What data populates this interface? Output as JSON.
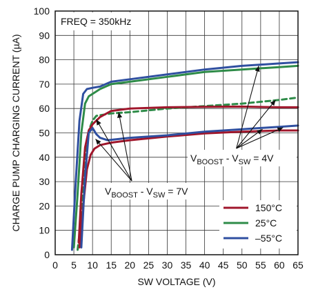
{
  "chart_data": {
    "type": "line",
    "xlabel": "SW VOLTAGE (V)",
    "ylabel": "CHARGE PUMP CHARGING CURRENT  (µA)",
    "xlim": [
      0,
      65
    ],
    "ylim": [
      0,
      100
    ],
    "x_ticks": [
      "0",
      "5",
      "10",
      "15",
      "20",
      "25",
      "30",
      "35",
      "40",
      "45",
      "50",
      "55",
      "60",
      "65"
    ],
    "y_ticks": [
      "0",
      "10",
      "20",
      "30",
      "40",
      "50",
      "60",
      "70",
      "80",
      "90",
      "100"
    ],
    "grid": true,
    "freq_label": "FREQ = 350kHz",
    "legend_position": "bottom-right",
    "colors": {
      "150°C": "#a0162b",
      "25°C": "#2e8b48",
      "-55°C": "#2f4fa0"
    },
    "series": [
      {
        "name": "150°C",
        "condition": "7V",
        "dashed": false,
        "color": "#a0162b",
        "x": [
          6.3,
          7.0,
          8.0,
          9.0,
          10.0,
          12.0,
          15.0,
          20.0,
          30.0,
          40.0,
          50.0,
          60.0,
          65.0
        ],
        "y": [
          5,
          25,
          44,
          51,
          53.5,
          56.5,
          59,
          60,
          60.5,
          60.7,
          60.8,
          60.5,
          60.5
        ]
      },
      {
        "name": "150°C",
        "condition": "4V",
        "dashed": false,
        "color": "#a0162b",
        "x": [
          6.5,
          7.5,
          8.5,
          9.5,
          10.5,
          12.0,
          15.0,
          20.0,
          30.0,
          40.0,
          50.0,
          60.0,
          65.0
        ],
        "y": [
          3,
          20,
          35,
          41,
          43.5,
          45,
          46,
          47,
          48.5,
          49.8,
          50.5,
          51,
          51
        ]
      },
      {
        "name": "25°C",
        "condition": "7V",
        "dashed": false,
        "color": "#2e8b48",
        "x": [
          5.0,
          6.0,
          7.0,
          8.0,
          9.0,
          10.0,
          12.0,
          15.0,
          20.0,
          30.0,
          40.0,
          50.0,
          60.0,
          65.0
        ],
        "y": [
          3,
          25,
          50,
          62,
          65,
          66,
          68,
          70,
          71,
          73,
          75,
          76,
          77,
          77.5
        ]
      },
      {
        "name": "25°C",
        "condition": "4V",
        "dashed": true,
        "color": "#2e8b48",
        "x": [
          6.0,
          7.0,
          8.0,
          9.0,
          10.0,
          11.0,
          15.0,
          20.0,
          30.0,
          40.0,
          50.0,
          60.0,
          65.0
        ],
        "y": [
          2,
          15,
          38,
          51,
          55,
          57,
          58,
          58.5,
          60,
          61,
          62,
          63.5,
          64.5
        ]
      },
      {
        "name": "–55°C",
        "condition": "7V",
        "dashed": false,
        "color": "#2f4fa0",
        "x": [
          4.5,
          5.5,
          6.5,
          7.5,
          8.5,
          10.0,
          12.0,
          15.0,
          20.0,
          30.0,
          40.0,
          50.0,
          60.0,
          65.0
        ],
        "y": [
          2,
          30,
          55,
          66,
          68,
          68.5,
          69,
          71,
          72,
          74,
          76,
          77.5,
          78.5,
          79
        ]
      },
      {
        "name": "–55°C",
        "condition": "4V",
        "dashed": false,
        "color": "#2f4fa0",
        "x": [
          7.0,
          8.0,
          9.0,
          10.0,
          11.0,
          12.0,
          14.0,
          20.0,
          30.0,
          40.0,
          50.0,
          60.0,
          65.0
        ],
        "y": [
          3,
          32,
          50,
          52,
          49.5,
          48,
          47,
          48,
          49,
          50.5,
          51.5,
          52.5,
          53
        ]
      }
    ],
    "annotations": [
      {
        "id": "vboost4",
        "main": "V",
        "sub1": "BOOST",
        "mid": " - V",
        "sub2": "SW",
        "tail": " = 4V"
      },
      {
        "id": "vboost7",
        "main": "V",
        "sub1": "BOOST",
        "mid": " - V",
        "sub2": "SW",
        "tail": " = 7V"
      }
    ],
    "legend": [
      {
        "label": "150°C",
        "color": "#a0162b"
      },
      {
        "label": "25°C",
        "color": "#2e8b48"
      },
      {
        "label": "–55°C",
        "color": "#2f4fa0"
      }
    ]
  }
}
